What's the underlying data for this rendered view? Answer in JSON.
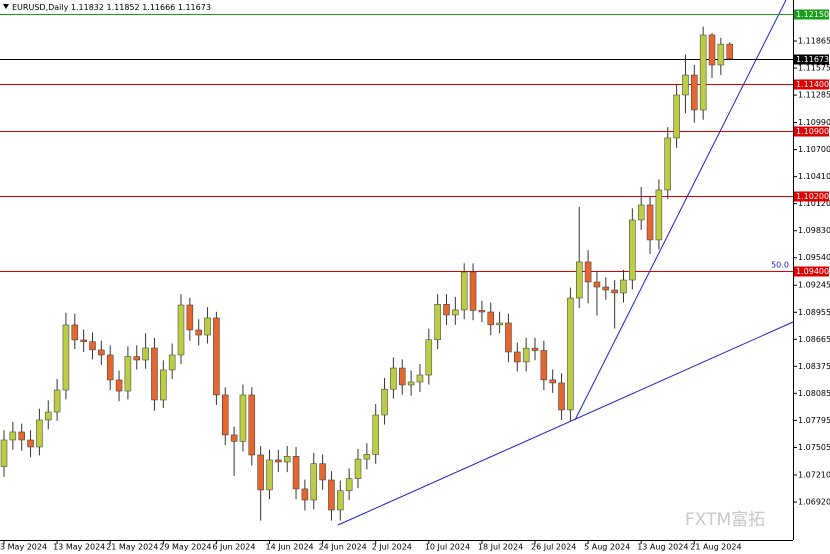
{
  "chart_data": {
    "type": "candlestick",
    "symbol": "EURUSD,Daily",
    "watermark": "FXTM富拓",
    "annotation": "50.0",
    "bull_color": "#bccd45",
    "bear_color": "#e5662e",
    "categories": [
      "3 May 2024",
      null,
      null,
      null,
      null,
      null,
      "13 May 2024",
      null,
      null,
      null,
      null,
      null,
      "21 May 2024",
      null,
      null,
      null,
      null,
      null,
      "29 May 2024",
      null,
      null,
      null,
      null,
      null,
      "6 Jun 2024",
      null,
      null,
      null,
      null,
      null,
      "14 Jun 2024",
      null,
      null,
      null,
      null,
      null,
      "24 Jun 2024",
      null,
      null,
      null,
      null,
      null,
      "2 Jul 2024",
      null,
      null,
      null,
      null,
      null,
      "10 Jul 2024",
      null,
      null,
      null,
      null,
      null,
      "18 Jul 2024",
      null,
      null,
      null,
      null,
      null,
      "26 Jul 2024",
      null,
      null,
      null,
      null,
      null,
      "5 Aug 2024",
      null,
      null,
      null,
      null,
      null,
      "13 Aug 2024",
      null,
      null,
      null,
      null,
      null,
      "21 Aug 2024",
      null,
      null,
      null,
      null
    ],
    "open": [
      1.073,
      1.07585,
      1.07671,
      1.07585,
      1.0751,
      1.078,
      1.07885,
      1.08121,
      1.08819,
      1.08658,
      1.0864,
      1.08551,
      1.08497,
      1.08229,
      1.0811,
      1.0848,
      1.08443,
      1.08572,
      1.08014,
      1.08336,
      1.08497,
      1.09033,
      1.08765,
      1.08711,
      1.08894,
      1.08068,
      1.07639,
      1.0757,
      1.08068,
      1.07424,
      1.07049,
      1.07371,
      1.07349,
      1.0741,
      1.0706,
      1.06941,
      1.0733,
      1.07156,
      1.06834,
      1.0704,
      1.0717,
      1.0738,
      1.0743,
      1.07853,
      1.0813,
      1.08357,
      1.08175,
      1.08207,
      1.08282,
      1.0866,
      1.0904,
      1.08926,
      1.0898,
      1.09387,
      1.08975,
      1.08958,
      1.0882,
      1.0884,
      1.08529,
      1.08422,
      1.0857,
      1.08545,
      1.0823,
      1.08197,
      1.07907,
      1.09108,
      1.09495,
      1.0928,
      1.09226,
      1.09194,
      1.09162,
      1.09301,
      1.09945,
      1.10106,
      1.09731,
      1.10267,
      1.10825,
      1.11286,
      1.115,
      1.11125,
      1.1193,
      1.11608,
      1.11832
    ],
    "high": [
      1.0769,
      1.0778,
      1.0776,
      1.0769,
      1.0792,
      1.0801,
      1.0824,
      1.0895,
      1.0894,
      1.0877,
      1.0874,
      1.0865,
      1.086,
      1.0833,
      1.0859,
      1.086,
      1.0873,
      1.0868,
      1.0844,
      1.0862,
      1.0915,
      1.0911,
      1.0888,
      1.0901,
      1.0896,
      1.0815,
      1.0773,
      1.0818,
      1.0815,
      1.0752,
      1.0748,
      1.0748,
      1.0752,
      1.0751,
      1.0716,
      1.0745,
      1.0743,
      1.0725,
      1.0715,
      1.0728,
      1.0749,
      1.0755,
      1.0797,
      1.0825,
      1.0847,
      1.0845,
      1.0833,
      1.084,
      1.0878,
      1.0915,
      1.0915,
      1.0912,
      1.0948,
      1.0948,
      1.0908,
      1.0906,
      1.0896,
      1.0894,
      1.0863,
      1.0868,
      1.0868,
      1.0865,
      1.0834,
      1.083,
      1.0922,
      1.10085,
      1.0962,
      1.094,
      1.0933,
      1.093,
      1.0941,
      1.1007,
      1.103,
      1.102,
      1.1038,
      1.1094,
      1.114,
      1.1172,
      1.1161,
      1.1202,
      1.1195,
      1.119,
      1.11852
    ],
    "low": [
      1.0719,
      1.0748,
      1.0747,
      1.074,
      1.0742,
      1.077,
      1.0779,
      1.0802,
      1.0856,
      1.0853,
      1.0845,
      1.0839,
      1.0812,
      1.08,
      1.0802,
      1.0834,
      1.0835,
      1.079,
      1.0793,
      1.0824,
      1.084,
      1.0865,
      1.086,
      1.0862,
      1.0796,
      1.0753,
      1.072,
      1.0746,
      1.0731,
      1.0672,
      1.0695,
      1.0724,
      1.0724,
      1.0695,
      1.0683,
      1.0684,
      1.0705,
      1.0672,
      1.0672,
      1.0694,
      1.0707,
      1.0727,
      1.0733,
      1.0775,
      1.0803,
      1.0807,
      1.0806,
      1.081,
      1.0818,
      1.0856,
      1.0882,
      1.0882,
      1.0888,
      1.0887,
      1.0885,
      1.0871,
      1.0873,
      1.0842,
      1.0832,
      1.0832,
      1.0844,
      1.0812,
      1.0809,
      1.078,
      1.0779,
      1.09,
      1.0905,
      1.0892,
      1.0909,
      1.0878,
      1.0906,
      1.092,
      1.0984,
      1.0958,
      1.0963,
      1.1017,
      1.1072,
      1.1109,
      1.1099,
      1.1102,
      1.1147,
      1.115,
      1.11666
    ],
    "close": [
      1.07585,
      1.07671,
      1.07585,
      1.0751,
      1.078,
      1.07885,
      1.08121,
      1.08819,
      1.08658,
      1.0864,
      1.08551,
      1.08497,
      1.08229,
      1.0811,
      1.0848,
      1.08443,
      1.08572,
      1.08014,
      1.08336,
      1.08497,
      1.09033,
      1.08765,
      1.08711,
      1.08894,
      1.08068,
      1.07639,
      1.0757,
      1.08068,
      1.07424,
      1.07049,
      1.07371,
      1.07349,
      1.0741,
      1.0706,
      1.06941,
      1.0733,
      1.07156,
      1.06834,
      1.0704,
      1.0717,
      1.0738,
      1.0743,
      1.07853,
      1.0813,
      1.08357,
      1.08175,
      1.08207,
      1.08282,
      1.0866,
      1.0904,
      1.08926,
      1.0898,
      1.09387,
      1.08975,
      1.08958,
      1.0882,
      1.0884,
      1.08529,
      1.08422,
      1.0857,
      1.08545,
      1.0823,
      1.08197,
      1.07907,
      1.09108,
      1.09495,
      1.0928,
      1.09226,
      1.09194,
      1.09162,
      1.09301,
      1.09945,
      1.10106,
      1.09731,
      1.10267,
      1.10825,
      1.11286,
      1.115,
      1.11125,
      1.1193,
      1.11608,
      1.11832,
      1.11673
    ],
    "ylim": [
      1.06512,
      1.12305
    ],
    "yticks": [
      1.11865,
      1.11575,
      1.11285,
      {
        "value": 1.1099,
        "label": "1.10990"
      },
      {
        "value": 1.107,
        "label": "1.10700"
      },
      {
        "value": 1.1041,
        "label": "1.10410"
      },
      {
        "value": 1.1012,
        "label": "1.10120"
      },
      {
        "value": 1.0983,
        "label": "1.09830"
      },
      {
        "value": 1.0954,
        "label": "1.09540"
      },
      1.09245,
      1.08955,
      1.08665,
      1.08375,
      1.08085,
      1.07795,
      1.07505,
      {
        "value": 1.0721,
        "label": "1.07210"
      },
      {
        "value": 1.0692,
        "label": "1.06920"
      }
    ],
    "levels": [
      {
        "value": 1.1215,
        "label": "1.12150",
        "color": "#1a9e1a"
      },
      {
        "value": 1.114,
        "label": "1.11400",
        "color": "#e00000"
      },
      {
        "value": 1.109,
        "label": "1.10900",
        "color": "#e00000"
      },
      {
        "value": 1.102,
        "label": "1.10200",
        "color": "#e00000"
      },
      {
        "value": 1.094,
        "label": "1.09400",
        "color": "#e00000"
      }
    ],
    "current_color": "#000000"
  }
}
